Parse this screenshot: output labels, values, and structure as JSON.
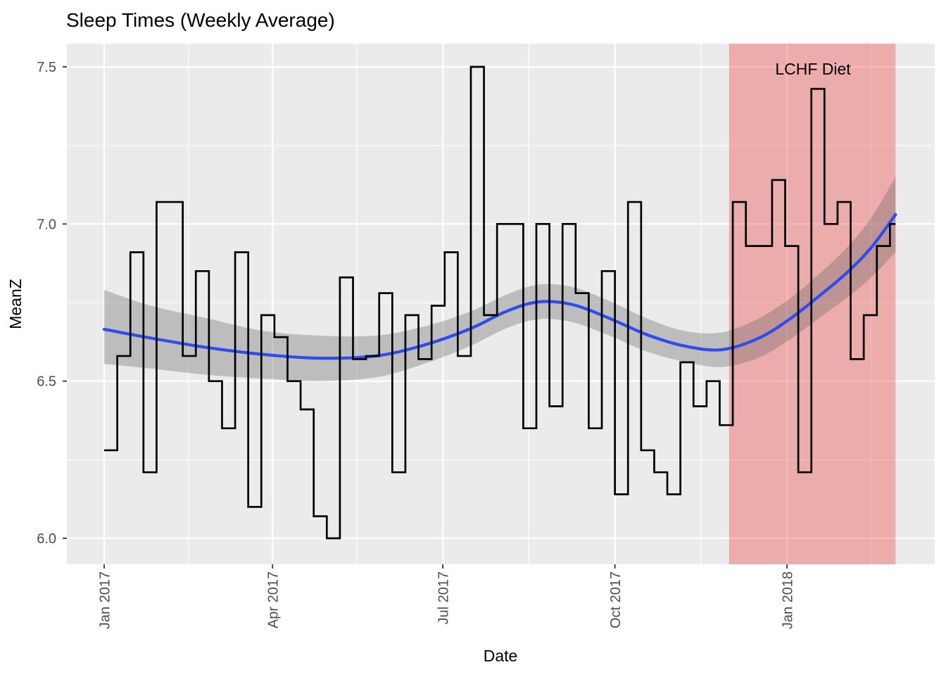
{
  "title": "Sleep Times (Weekly Average)",
  "colors": {
    "panel_bg": "#EBEBEB",
    "grid": "#FFFFFF",
    "step_line": "#000000",
    "smooth_line": "#2F4DEF",
    "ribbon_fill": "rgba(100,100,100,0.34)",
    "region_fill": "rgba(237,60,62,0.36)",
    "tick_mark": "#333333",
    "tick_text": "#4D4D4D"
  },
  "chart_data": {
    "type": "line",
    "subtype": "step-with-loess-smooth",
    "title": "Sleep Times (Weekly Average)",
    "xlabel": "Date",
    "ylabel": "MeanZ",
    "grid": "on",
    "legend": "none",
    "x_axis": {
      "start_date": "2017-01-01",
      "tick_labels": [
        "Jan 2017",
        "Apr 2017",
        "Jul 2017",
        "Oct 2017",
        "Jan 2018"
      ],
      "tick_days": [
        0,
        90,
        181,
        273,
        365
      ],
      "minor_days": [
        45,
        135,
        227,
        319,
        410
      ],
      "domain_days": [
        -20,
        444
      ]
    },
    "y_axis": {
      "tick_labels": [
        "7.5",
        "7.0",
        "6.5",
        "6.0"
      ],
      "tick_values": [
        7.5,
        7.0,
        6.5,
        6.0
      ],
      "minor_values": [
        7.25,
        6.75,
        6.25
      ],
      "ylim": [
        5.917,
        7.574
      ]
    },
    "step_series": {
      "name": "weekly average sleep time",
      "week_length_days": 7,
      "first_point_day": 0,
      "end_day": 423,
      "values": [
        6.28,
        6.58,
        6.91,
        6.21,
        7.07,
        7.07,
        6.58,
        6.85,
        6.5,
        6.35,
        6.91,
        6.1,
        6.71,
        6.64,
        6.5,
        6.41,
        6.07,
        6.0,
        6.83,
        6.57,
        6.58,
        6.78,
        6.21,
        6.71,
        6.57,
        6.74,
        6.91,
        6.58,
        7.5,
        6.71,
        7.0,
        7.0,
        6.35,
        7.0,
        6.42,
        7.0,
        6.78,
        6.35,
        6.85,
        6.14,
        7.07,
        6.28,
        6.21,
        6.14,
        6.56,
        6.42,
        6.5,
        6.36,
        7.07,
        6.93,
        6.93,
        7.14,
        6.93,
        6.21,
        7.43,
        7.0,
        7.07,
        6.57,
        6.71,
        6.93,
        7.0
      ]
    },
    "smooth_series": {
      "name": "loess smooth",
      "points": [
        [
          0,
          6.665
        ],
        [
          25,
          6.637
        ],
        [
          55,
          6.607
        ],
        [
          85,
          6.585
        ],
        [
          115,
          6.573
        ],
        [
          145,
          6.58
        ],
        [
          170,
          6.613
        ],
        [
          195,
          6.665
        ],
        [
          215,
          6.722
        ],
        [
          232,
          6.752
        ],
        [
          250,
          6.744
        ],
        [
          270,
          6.7
        ],
        [
          290,
          6.648
        ],
        [
          310,
          6.612
        ],
        [
          330,
          6.6
        ],
        [
          350,
          6.637
        ],
        [
          367,
          6.7
        ],
        [
          382,
          6.77
        ],
        [
          397,
          6.845
        ],
        [
          410,
          6.925
        ],
        [
          423,
          7.03
        ]
      ]
    },
    "ribbon_series": {
      "name": "confidence band",
      "hi": [
        [
          0,
          6.79
        ],
        [
          25,
          6.74
        ],
        [
          55,
          6.7
        ],
        [
          85,
          6.66
        ],
        [
          115,
          6.645
        ],
        [
          145,
          6.645
        ],
        [
          170,
          6.672
        ],
        [
          195,
          6.72
        ],
        [
          215,
          6.775
        ],
        [
          232,
          6.807
        ],
        [
          250,
          6.8
        ],
        [
          270,
          6.755
        ],
        [
          290,
          6.7
        ],
        [
          310,
          6.66
        ],
        [
          330,
          6.655
        ],
        [
          350,
          6.7
        ],
        [
          367,
          6.765
        ],
        [
          382,
          6.84
        ],
        [
          397,
          6.925
        ],
        [
          410,
          7.02
        ],
        [
          423,
          7.15
        ]
      ],
      "lo": [
        [
          0,
          6.555
        ],
        [
          25,
          6.54
        ],
        [
          55,
          6.52
        ],
        [
          85,
          6.508
        ],
        [
          115,
          6.5
        ],
        [
          145,
          6.512
        ],
        [
          170,
          6.553
        ],
        [
          195,
          6.61
        ],
        [
          215,
          6.668
        ],
        [
          232,
          6.697
        ],
        [
          250,
          6.688
        ],
        [
          270,
          6.645
        ],
        [
          290,
          6.594
        ],
        [
          310,
          6.562
        ],
        [
          330,
          6.545
        ],
        [
          350,
          6.575
        ],
        [
          367,
          6.635
        ],
        [
          382,
          6.7
        ],
        [
          397,
          6.765
        ],
        [
          410,
          6.83
        ],
        [
          423,
          6.91
        ]
      ]
    },
    "annotation": {
      "label": "LCHF Diet",
      "region_start_day": 334,
      "region_end_day": 423,
      "region_start_date": "2017-12-01",
      "region_end_date": "2018-02-28"
    }
  }
}
